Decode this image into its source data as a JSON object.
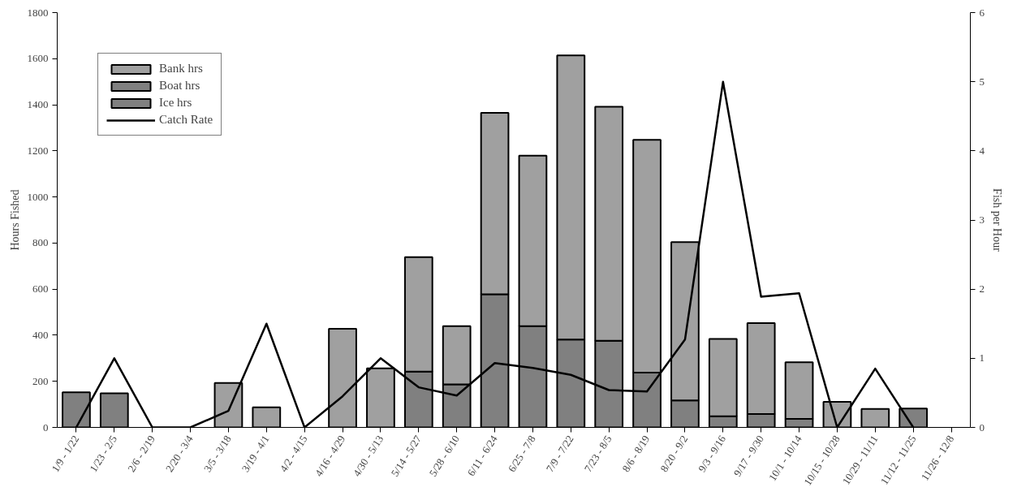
{
  "chart_data": {
    "type": "bar",
    "stacked": true,
    "xlabel": null,
    "ylabel": "Hours Fished",
    "y2label": "Fish per Hour",
    "categories": [
      "1/9 - 1/22",
      "1/23 - 2/5",
      "2/6 - 2/19",
      "2/20 - 3/4",
      "3/5 - 3/18",
      "3/19 - 4/1",
      "4/2 - 4/15",
      "4/16 - 4/29",
      "4/30 - 5/13",
      "5/14 - 5/27",
      "5/28 - 6/10",
      "6/11 - 6/24",
      "6/25 - 7/8",
      "7/9 - 7/22",
      "7/23 - 8/5",
      "8/6 - 8/19",
      "8/20 - 9/2",
      "9/3 - 9/16",
      "9/17 - 9/30",
      "10/1 - 10/14",
      "10/15 - 10/28",
      "10/29 - 11/11",
      "11/12 - 11/25",
      "11/26 - 12/8"
    ],
    "series": [
      {
        "name": "Ice hrs",
        "color": "#808080",
        "values": [
          152,
          148,
          0,
          0,
          0,
          0,
          0,
          0,
          0,
          0,
          0,
          0,
          0,
          0,
          0,
          0,
          0,
          0,
          0,
          0,
          0,
          0,
          82,
          0
        ]
      },
      {
        "name": "Boat hrs",
        "color": "#808080",
        "values": [
          0,
          0,
          0,
          0,
          0,
          0,
          0,
          0,
          0,
          242,
          187,
          578,
          439,
          381,
          376,
          238,
          117,
          48,
          58,
          37,
          0,
          0,
          0,
          0
        ]
      },
      {
        "name": "Bank hrs",
        "color": "#a0a0a0",
        "values": [
          0,
          0,
          0,
          0,
          193,
          87,
          0,
          428,
          256,
          497,
          252,
          787,
          740,
          1233,
          1015,
          1010,
          687,
          336,
          395,
          246,
          111,
          80,
          0,
          0
        ]
      },
      {
        "name": "Catch Rate",
        "type": "line",
        "axis": "y2",
        "color": "#000000",
        "values": [
          0,
          1.0,
          0,
          0,
          0.24,
          1.5,
          0,
          0.45,
          1.0,
          0.58,
          0.46,
          0.93,
          0.86,
          0.76,
          0.54,
          0.52,
          1.27,
          5.0,
          1.89,
          1.94,
          0,
          0.85,
          0,
          null
        ]
      }
    ],
    "ylim": [
      0,
      1800
    ],
    "yticks": [
      0,
      200,
      400,
      600,
      800,
      1000,
      1200,
      1400,
      1600,
      1800
    ],
    "y2lim": [
      0,
      6
    ],
    "y2ticks": [
      0,
      1,
      2,
      3,
      4,
      5,
      6
    ],
    "grid": false,
    "legend": "top left"
  }
}
